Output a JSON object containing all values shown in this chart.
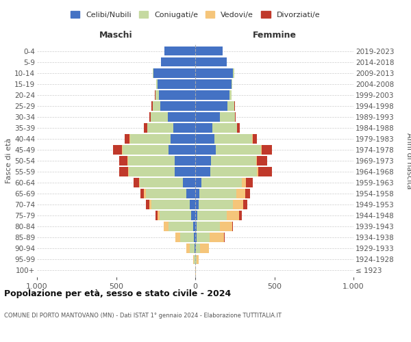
{
  "age_groups": [
    "100+",
    "95-99",
    "90-94",
    "85-89",
    "80-84",
    "75-79",
    "70-74",
    "65-69",
    "60-64",
    "55-59",
    "50-54",
    "45-49",
    "40-44",
    "35-39",
    "30-34",
    "25-29",
    "20-24",
    "15-19",
    "10-14",
    "5-9",
    "0-4"
  ],
  "birth_years": [
    "≤ 1923",
    "1924-1928",
    "1929-1933",
    "1934-1938",
    "1939-1943",
    "1944-1948",
    "1949-1953",
    "1954-1958",
    "1959-1963",
    "1964-1968",
    "1969-1973",
    "1974-1978",
    "1979-1983",
    "1984-1988",
    "1989-1993",
    "1994-1998",
    "1999-2003",
    "2004-2008",
    "2009-2013",
    "2014-2018",
    "2019-2023"
  ],
  "colors": {
    "celibe": "#4472c4",
    "coniugato": "#c5d9a0",
    "vedovo": "#f5c57a",
    "divorziato": "#c0392b"
  },
  "maschi": {
    "celibe": [
      2,
      2,
      5,
      10,
      15,
      25,
      35,
      55,
      80,
      130,
      130,
      170,
      155,
      140,
      175,
      220,
      230,
      240,
      265,
      215,
      195
    ],
    "coniugato": [
      0,
      5,
      30,
      85,
      155,
      200,
      240,
      255,
      270,
      290,
      295,
      290,
      255,
      165,
      105,
      50,
      20,
      5,
      5,
      0,
      0
    ],
    "vedovo": [
      0,
      5,
      20,
      30,
      30,
      15,
      15,
      15,
      5,
      5,
      5,
      5,
      5,
      0,
      0,
      0,
      0,
      0,
      0,
      0,
      0
    ],
    "divorziato": [
      0,
      0,
      0,
      0,
      0,
      10,
      20,
      20,
      35,
      55,
      50,
      55,
      30,
      20,
      10,
      5,
      5,
      0,
      0,
      0,
      0
    ]
  },
  "femmine": {
    "nubile": [
      2,
      2,
      5,
      10,
      10,
      15,
      20,
      25,
      40,
      95,
      100,
      130,
      120,
      110,
      155,
      205,
      215,
      230,
      240,
      200,
      175
    ],
    "coniugata": [
      0,
      5,
      25,
      80,
      145,
      185,
      220,
      235,
      255,
      295,
      285,
      285,
      240,
      155,
      95,
      40,
      15,
      5,
      5,
      0,
      0
    ],
    "vedova": [
      2,
      15,
      55,
      90,
      80,
      75,
      65,
      55,
      25,
      10,
      5,
      5,
      5,
      0,
      0,
      0,
      0,
      0,
      0,
      0,
      0
    ],
    "divorziata": [
      0,
      0,
      0,
      5,
      5,
      20,
      25,
      30,
      45,
      85,
      65,
      65,
      25,
      15,
      5,
      5,
      0,
      0,
      0,
      0,
      0
    ]
  },
  "xlim": 1000,
  "title": "Popolazione per età, sesso e stato civile - 2024",
  "subtitle": "COMUNE DI PORTO MANTOVANO (MN) - Dati ISTAT 1° gennaio 2024 - Elaborazione TUTTITALIA.IT",
  "ylabel_left": "Fasce di età",
  "ylabel_right": "Anni di nascita",
  "header_maschi": "Maschi",
  "header_femmine": "Femmine",
  "legend_labels": [
    "Celibi/Nubili",
    "Coniugati/e",
    "Vedovi/e",
    "Divorziati/e"
  ],
  "bg_color": "#ffffff",
  "grid_color": "#cccccc",
  "bar_height": 0.85
}
